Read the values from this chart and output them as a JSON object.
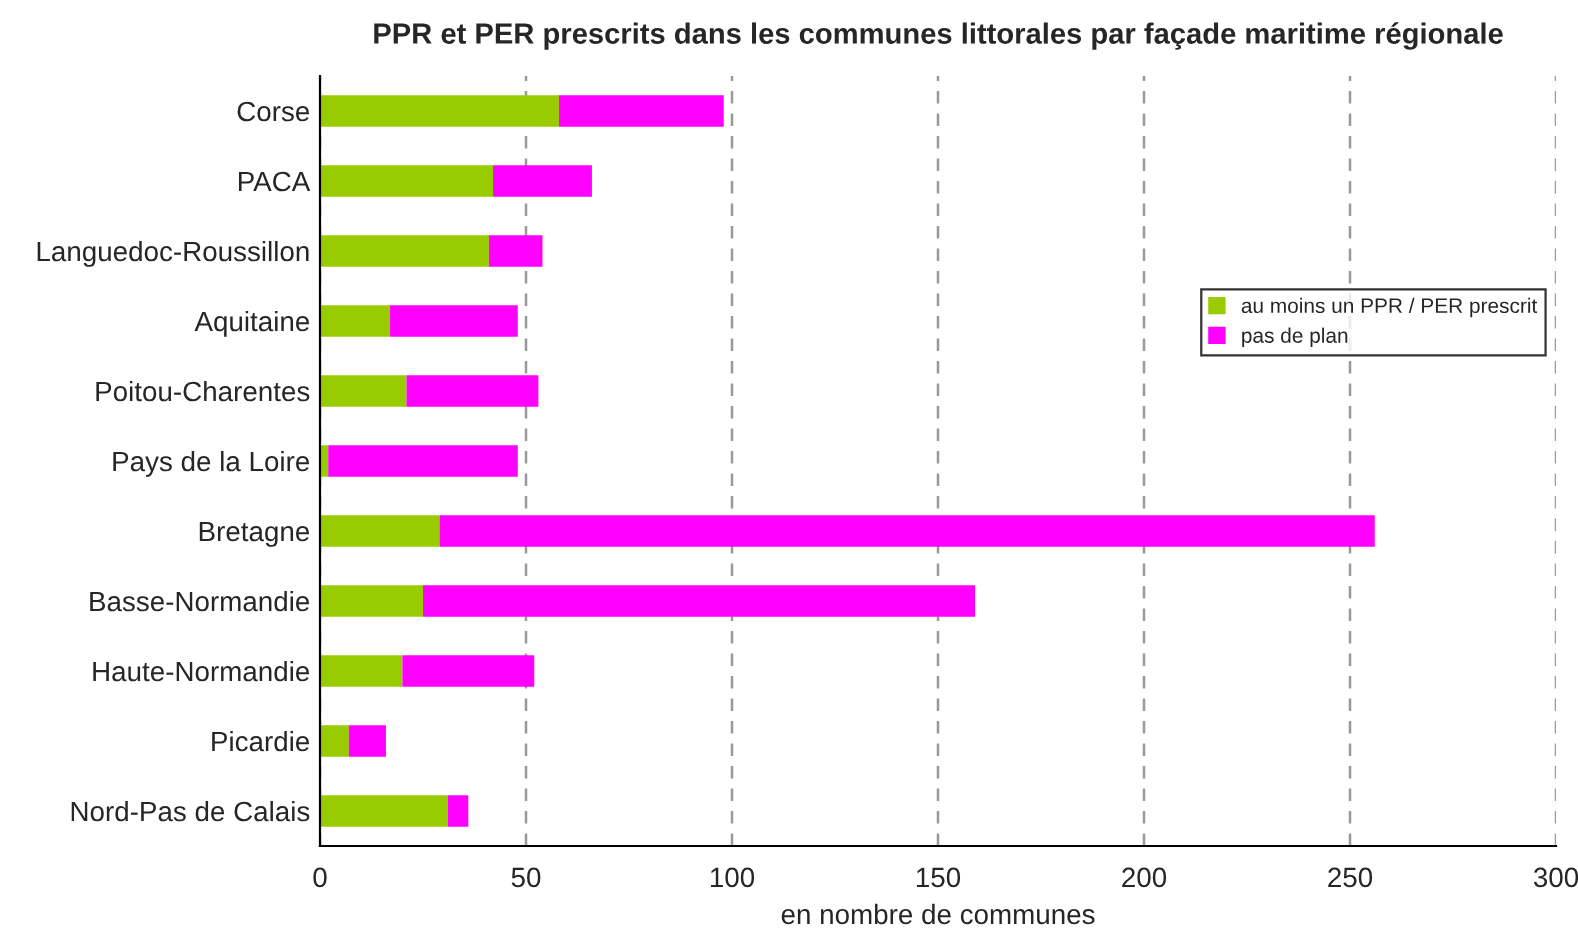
{
  "chart_data": {
    "type": "bar",
    "orientation": "horizontal",
    "stacked": true,
    "title": "PPR et PER prescrits dans les communes littorales par façade maritime régionale",
    "xlabel": "en nombre de communes",
    "categories": [
      "Corse",
      "PACA",
      "Languedoc-Roussillon",
      "Aquitaine",
      "Poitou-Charentes",
      "Pays de la Loire",
      "Bretagne",
      "Basse-Normandie",
      "Haute-Normandie",
      "Picardie",
      "Nord-Pas de Calais"
    ],
    "series": [
      {
        "name": "au moins un PPR / PER prescrit",
        "color": "#99cc00",
        "values": [
          58,
          42,
          41,
          17,
          21,
          2,
          29,
          25,
          20,
          7,
          31
        ]
      },
      {
        "name": "pas de plan",
        "color": "#ff00ff",
        "values": [
          40,
          24,
          13,
          31,
          32,
          46,
          227,
          134,
          32,
          9,
          5
        ]
      }
    ],
    "xlim": [
      0,
      300
    ],
    "xticks": [
      0,
      50,
      100,
      150,
      200,
      250,
      300
    ],
    "grid": "x",
    "legend": "right"
  }
}
